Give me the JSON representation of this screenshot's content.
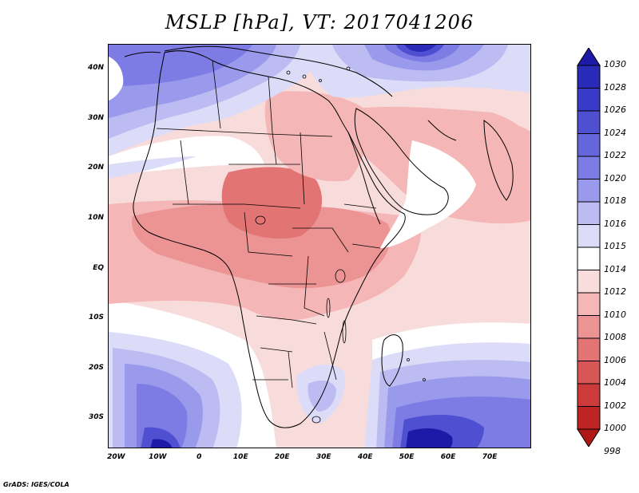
{
  "title": "MSLP [hPa], VT: 2017041206",
  "credit": "GrADS: IGES/COLA",
  "lat_labels": [
    {
      "label": "40N",
      "value": 40
    },
    {
      "label": "30N",
      "value": 30
    },
    {
      "label": "20N",
      "value": 20
    },
    {
      "label": "10N",
      "value": 10
    },
    {
      "label": "EQ",
      "value": 0
    },
    {
      "label": "10S",
      "value": -10
    },
    {
      "label": "20S",
      "value": -20
    },
    {
      "label": "30S",
      "value": -30
    }
  ],
  "lon_labels": [
    {
      "label": "20W",
      "value": -20
    },
    {
      "label": "10W",
      "value": -10
    },
    {
      "label": "0",
      "value": 0
    },
    {
      "label": "10E",
      "value": 10
    },
    {
      "label": "20E",
      "value": 20
    },
    {
      "label": "30E",
      "value": 30
    },
    {
      "label": "40E",
      "value": 40
    },
    {
      "label": "50E",
      "value": 50
    },
    {
      "label": "60E",
      "value": 60
    },
    {
      "label": "70E",
      "value": 70
    }
  ],
  "colorbar": {
    "levels": [
      "1030",
      "1028",
      "1026",
      "1024",
      "1022",
      "1020",
      "1018",
      "1016",
      "1015",
      "1014",
      "1012",
      "1010",
      "1008",
      "1006",
      "1004",
      "1002",
      "1000",
      "998"
    ],
    "colors": [
      "#1e1aa8",
      "#2a2ab8",
      "#3a3ac8",
      "#4f4fd2",
      "#6565dc",
      "#7c7ce4",
      "#9a9aec",
      "#bcbcf2",
      "#dcdcf8",
      "#ffffff",
      "#f9dcdc",
      "#f4b6b6",
      "#ec9494",
      "#e27474",
      "#d85656",
      "#cc3a3a",
      "#bf2424",
      "#b01818"
    ]
  },
  "map_colors": {
    "ocean_default": "#f8dcdc",
    "high_1030": "#1e1aa8",
    "high_1024": "#4f4fd2",
    "high_1020": "#7c7ce4",
    "high_1018": "#9a9aec",
    "high_1016": "#bcbcf2",
    "high_1015": "#dcdcf8",
    "neutral_1014": "#ffffff",
    "low_1012": "#f9dcdc",
    "low_1010": "#f4b6b6",
    "low_1008": "#ec9494",
    "low_1006": "#e27474",
    "coastline": "#000000"
  }
}
